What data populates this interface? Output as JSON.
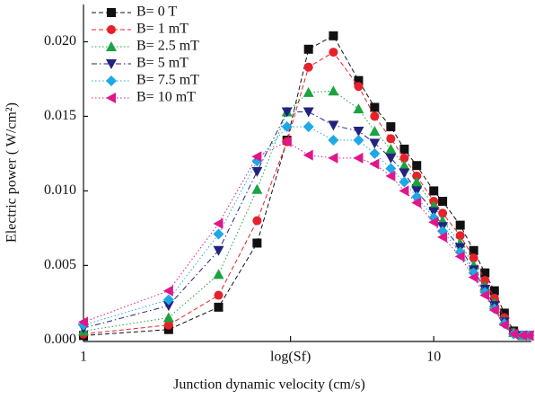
{
  "chart_data": {
    "type": "line",
    "x_scale": "log",
    "x_label": "Junction dynamic velocity (cm/s)",
    "y_label": "Electric power ( W/cm²)",
    "x": [
      1,
      1.75,
      2.43,
      3.13,
      3.81,
      4.39,
      5.17,
      6.1,
      6.78,
      7.54,
      8.24,
      8.94,
      10,
      10.6,
      11.9,
      13,
      14,
      14.9,
      15.9,
      16.9,
      17.9,
      18.7
    ],
    "xlim": [
      1,
      19
    ],
    "xticks": [
      1,
      {
        "value": 3.9,
        "label": "log(Sf)"
      },
      10
    ],
    "ylim": [
      -0.0001,
      0.0225
    ],
    "yticks": [
      {
        "value": 0,
        "label": "0.000"
      },
      {
        "value": 0.005,
        "label": "0.005"
      },
      {
        "value": 0.01,
        "label": "0.010"
      },
      {
        "value": 0.015,
        "label": "0.015"
      },
      {
        "value": 0.02,
        "label": "0.020"
      }
    ],
    "legend": "top-left",
    "series": [
      {
        "name": "B= 0 T",
        "color": "#111111",
        "marker": "square",
        "line_style": "dashed",
        "values": [
          0.0003,
          0.0007,
          0.0022,
          0.0065,
          0.0134,
          0.0195,
          0.0204,
          0.0174,
          0.0156,
          0.0143,
          0.0128,
          0.0117,
          0.01,
          0.0093,
          0.0077,
          0.006,
          0.0045,
          0.0033,
          0.0018,
          0.0006,
          0.0003,
          0.0003
        ]
      },
      {
        "name": "B= 1 mT",
        "color": "#e8202a",
        "marker": "circle",
        "line_style": "dashed",
        "values": [
          0.0004,
          0.001,
          0.003,
          0.008,
          0.0133,
          0.0183,
          0.0193,
          0.017,
          0.015,
          0.0135,
          0.0122,
          0.011,
          0.0093,
          0.0085,
          0.007,
          0.0055,
          0.004,
          0.0028,
          0.0015,
          0.0005,
          0.0003,
          0.0003
        ]
      },
      {
        "name": "B= 2.5 mT",
        "color": "#1aa340",
        "marker": "triangle-up",
        "line_style": "dotted",
        "values": [
          0.0006,
          0.0015,
          0.0044,
          0.0101,
          0.0153,
          0.0166,
          0.0167,
          0.0155,
          0.014,
          0.0128,
          0.0117,
          0.0106,
          0.009,
          0.008,
          0.0065,
          0.005,
          0.0036,
          0.0025,
          0.0013,
          0.0005,
          0.0003,
          0.0003
        ]
      },
      {
        "name": "B= 5 mT",
        "color": "#23237f",
        "marker": "triangle-down",
        "line_style": "dashdot",
        "values": [
          0.0008,
          0.0023,
          0.006,
          0.0113,
          0.0153,
          0.0153,
          0.0144,
          0.014,
          0.0132,
          0.0122,
          0.0112,
          0.01,
          0.0086,
          0.0076,
          0.0062,
          0.0047,
          0.0034,
          0.0023,
          0.0012,
          0.0004,
          0.0003,
          0.0003
        ]
      },
      {
        "name": "B= 7.5 mT",
        "color": "#1ea8e6",
        "marker": "diamond",
        "line_style": "dotted",
        "values": [
          0.001,
          0.0027,
          0.0071,
          0.012,
          0.0143,
          0.0143,
          0.0134,
          0.0134,
          0.0125,
          0.0115,
          0.0106,
          0.0096,
          0.0082,
          0.0073,
          0.0059,
          0.0045,
          0.0032,
          0.0021,
          0.0011,
          0.0004,
          0.0003,
          0.0003
        ]
      },
      {
        "name": "B= 10 mT",
        "color": "#e0168a",
        "marker": "triangle-left",
        "line_style": "dotted",
        "values": [
          0.0012,
          0.0033,
          0.0078,
          0.0123,
          0.0133,
          0.0124,
          0.0122,
          0.0122,
          0.0118,
          0.011,
          0.01,
          0.0092,
          0.0079,
          0.0069,
          0.0056,
          0.0042,
          0.003,
          0.002,
          0.001,
          0.0004,
          0.0003,
          0.0003
        ]
      }
    ]
  }
}
